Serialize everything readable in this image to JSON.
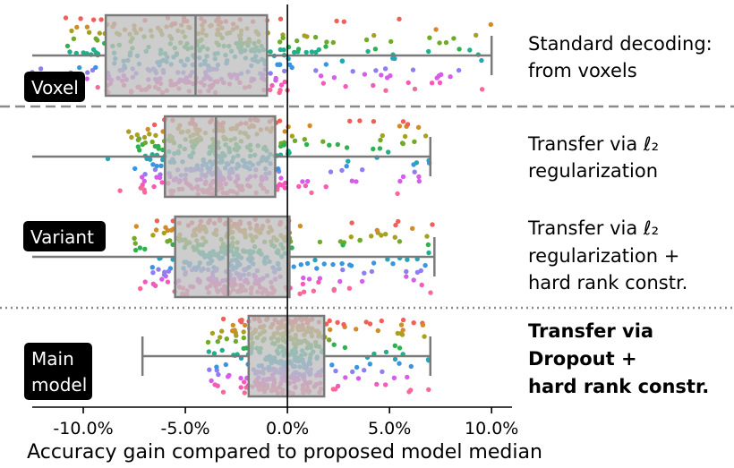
{
  "chart_data": {
    "type": "box-strip",
    "xlabel": "Accuracy gain compared to proposed model median",
    "xlim": [
      -12.5,
      11.0
    ],
    "xticks": [
      -10,
      -5,
      0,
      5,
      10
    ],
    "xtick_labels": [
      "-10.0%",
      "-5.0%",
      "0.0%",
      "5.0%",
      "10.0%"
    ],
    "zero_line": 0,
    "rows": [
      {
        "label_lines": [
          "Standard decoding:",
          "from voxels"
        ],
        "bold": false,
        "box": {
          "q1": -8.9,
          "median": -4.5,
          "q3": -1.0,
          "whisker_low": -12.5,
          "whisker_high": 10.0
        },
        "spread": -1.0
      },
      {
        "label_lines": [
          "Transfer via ℓ₂",
          "regularization"
        ],
        "bold": false,
        "box": {
          "q1": -6.0,
          "median": -3.5,
          "q3": -0.6,
          "whisker_low": -12.5,
          "whisker_high": 7.0
        },
        "spread": -0.5
      },
      {
        "label_lines": [
          "Transfer via ℓ₂",
          "regularization +",
          "hard rank constr."
        ],
        "bold": false,
        "box": {
          "q1": -5.5,
          "median": -2.9,
          "q3": 0.1,
          "whisker_low": -12.5,
          "whisker_high": 7.2
        },
        "spread": 0.0
      },
      {
        "label_lines": [
          "Transfer via",
          "Dropout +",
          "hard rank constr."
        ],
        "bold": true,
        "box": {
          "q1": -1.9,
          "median": 0.0,
          "q3": 1.8,
          "whisker_low": -7.1,
          "whisker_high": 7.0
        },
        "spread": 0.8
      }
    ],
    "group_badges": [
      {
        "text_lines": [
          "Voxel"
        ]
      },
      {
        "text_lines": [
          "Variant"
        ]
      },
      {
        "text_lines": [
          "Main",
          "model"
        ]
      }
    ],
    "separators": [
      "dashed",
      "dotted"
    ],
    "point_palette": [
      "#f0605a",
      "#d38b2a",
      "#a8a020",
      "#6faa2a",
      "#2db24e",
      "#1fb08c",
      "#26a6b5",
      "#3a95e0",
      "#8f7ef0",
      "#d55ee8",
      "#f55ab8",
      "#f56a9a"
    ]
  }
}
